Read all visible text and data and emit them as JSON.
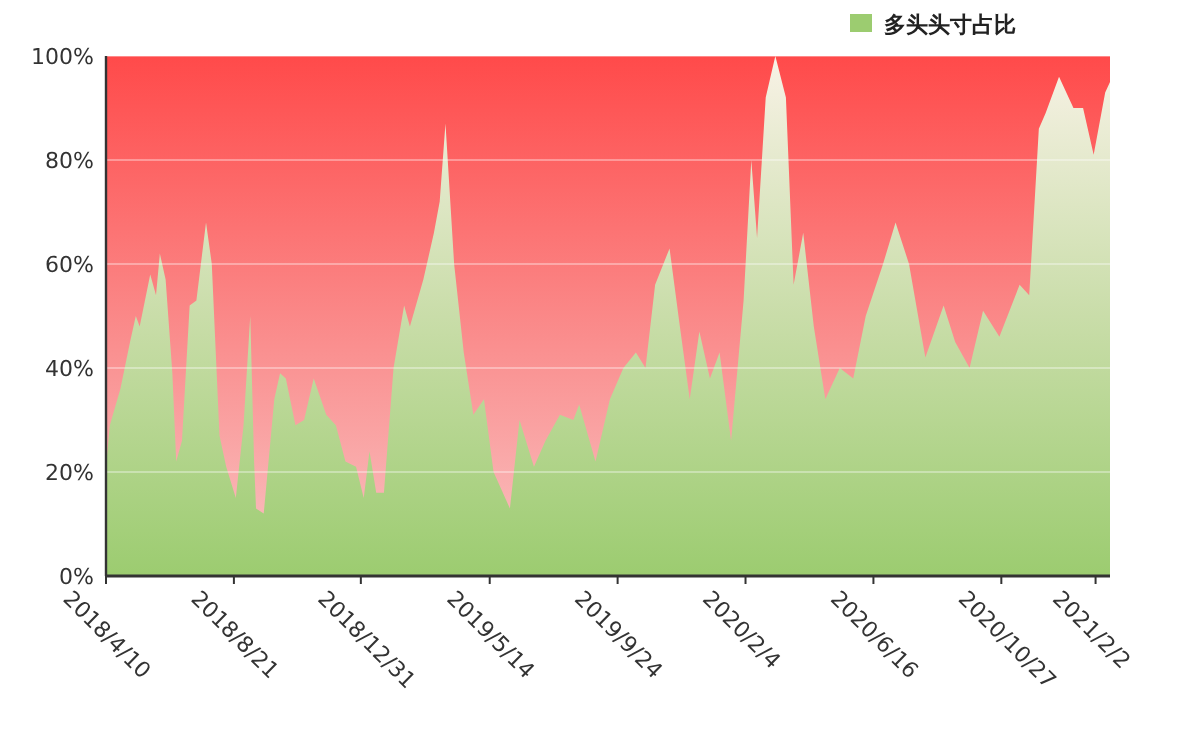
{
  "chart_data": {
    "type": "area",
    "x": [
      "2018-04-10",
      "2018-04-14",
      "2018-04-25",
      "2018-05-05",
      "2018-05-11",
      "2018-05-15",
      "2018-05-26",
      "2018-06-01",
      "2018-06-05",
      "2018-06-11",
      "2018-06-18",
      "2018-06-22",
      "2018-06-28",
      "2018-07-06",
      "2018-07-13",
      "2018-07-23",
      "2018-07-29",
      "2018-08-06",
      "2018-08-13",
      "2018-08-23",
      "2018-08-31",
      "2018-09-07",
      "2018-09-11",
      "2018-09-13",
      "2018-09-21",
      "2018-10-02",
      "2018-10-08",
      "2018-10-14",
      "2018-10-24",
      "2018-11-02",
      "2018-11-12",
      "2018-11-25",
      "2018-12-05",
      "2018-12-15",
      "2018-12-26",
      "2019-01-03",
      "2019-01-09",
      "2019-01-16",
      "2019-01-24",
      "2019-02-03",
      "2019-02-14",
      "2019-02-20",
      "2019-03-06",
      "2019-03-17",
      "2019-03-23",
      "2019-03-29",
      "2019-04-07",
      "2019-04-17",
      "2019-04-27",
      "2019-05-08",
      "2019-05-18",
      "2019-06-04",
      "2019-06-14",
      "2019-06-29",
      "2019-07-11",
      "2019-07-26",
      "2019-08-09",
      "2019-08-15",
      "2019-09-01",
      "2019-09-16",
      "2019-09-30",
      "2019-10-13",
      "2019-10-23",
      "2019-11-02",
      "2019-11-17",
      "2019-11-27",
      "2019-12-08",
      "2019-12-18",
      "2019-12-29",
      "2020-01-08",
      "2020-01-20",
      "2020-02-02",
      "2020-02-10",
      "2020-02-16",
      "2020-02-25",
      "2020-03-06",
      "2020-03-17",
      "2020-03-25",
      "2020-04-04",
      "2020-04-15",
      "2020-04-27",
      "2020-05-12",
      "2020-05-26",
      "2020-06-08",
      "2020-06-26",
      "2020-07-09",
      "2020-07-23",
      "2020-08-09",
      "2020-08-28",
      "2020-09-09",
      "2020-09-24",
      "2020-10-08",
      "2020-10-25",
      "2020-11-15",
      "2020-11-25",
      "2020-12-05",
      "2020-12-12",
      "2020-12-26",
      "2021-01-10",
      "2021-01-20",
      "2021-01-31",
      "2021-02-12",
      "2021-02-17"
    ],
    "series": [
      {
        "name": "多头头寸占比",
        "color": "#9ccc70",
        "values": [
          21,
          29,
          36,
          45,
          50,
          48,
          58,
          54,
          62,
          57,
          39,
          22,
          26,
          52,
          53,
          68,
          60,
          27,
          21,
          15,
          29,
          50,
          22,
          13,
          12,
          34,
          39,
          38,
          29,
          30,
          38,
          31,
          29,
          22,
          21,
          15,
          24,
          16,
          16,
          40,
          52,
          48,
          57,
          66,
          72,
          87,
          60,
          43,
          31,
          34,
          20,
          13,
          30,
          21,
          26,
          31,
          30,
          33,
          22,
          34,
          40,
          43,
          40,
          56,
          63,
          49,
          34,
          47,
          38,
          43,
          26,
          53,
          80,
          65,
          92,
          100,
          92,
          56,
          66,
          48,
          34,
          40,
          38,
          50,
          60,
          68,
          60,
          42,
          52,
          45,
          40,
          51,
          46,
          56,
          54,
          86,
          89,
          96,
          90,
          90,
          81,
          93,
          95
        ]
      }
    ],
    "xlim": [
      "2018-04-10",
      "2021-02-17"
    ],
    "xticks": [
      {
        "value": "2018-04-10",
        "label": "2018/4/10"
      },
      {
        "value": "2018-08-21",
        "label": "2018/8/21"
      },
      {
        "value": "2018-12-31",
        "label": "2018/12/31"
      },
      {
        "value": "2019-05-14",
        "label": "2019/5/14"
      },
      {
        "value": "2019-09-24",
        "label": "2019/9/24"
      },
      {
        "value": "2020-02-04",
        "label": "2020/2/4"
      },
      {
        "value": "2020-06-16",
        "label": "2020/6/16"
      },
      {
        "value": "2020-10-27",
        "label": "2020/10/27"
      },
      {
        "value": "2021-02-02",
        "label": "2021/2/2"
      }
    ],
    "ylim": [
      0,
      100
    ],
    "yticks": [
      {
        "value": 0,
        "label": "0%"
      },
      {
        "value": 20,
        "label": "20%"
      },
      {
        "value": 40,
        "label": "40%"
      },
      {
        "value": 60,
        "label": "60%"
      },
      {
        "value": 80,
        "label": "80%"
      },
      {
        "value": 100,
        "label": "100%"
      }
    ],
    "grid": "y",
    "legend": "top right"
  }
}
